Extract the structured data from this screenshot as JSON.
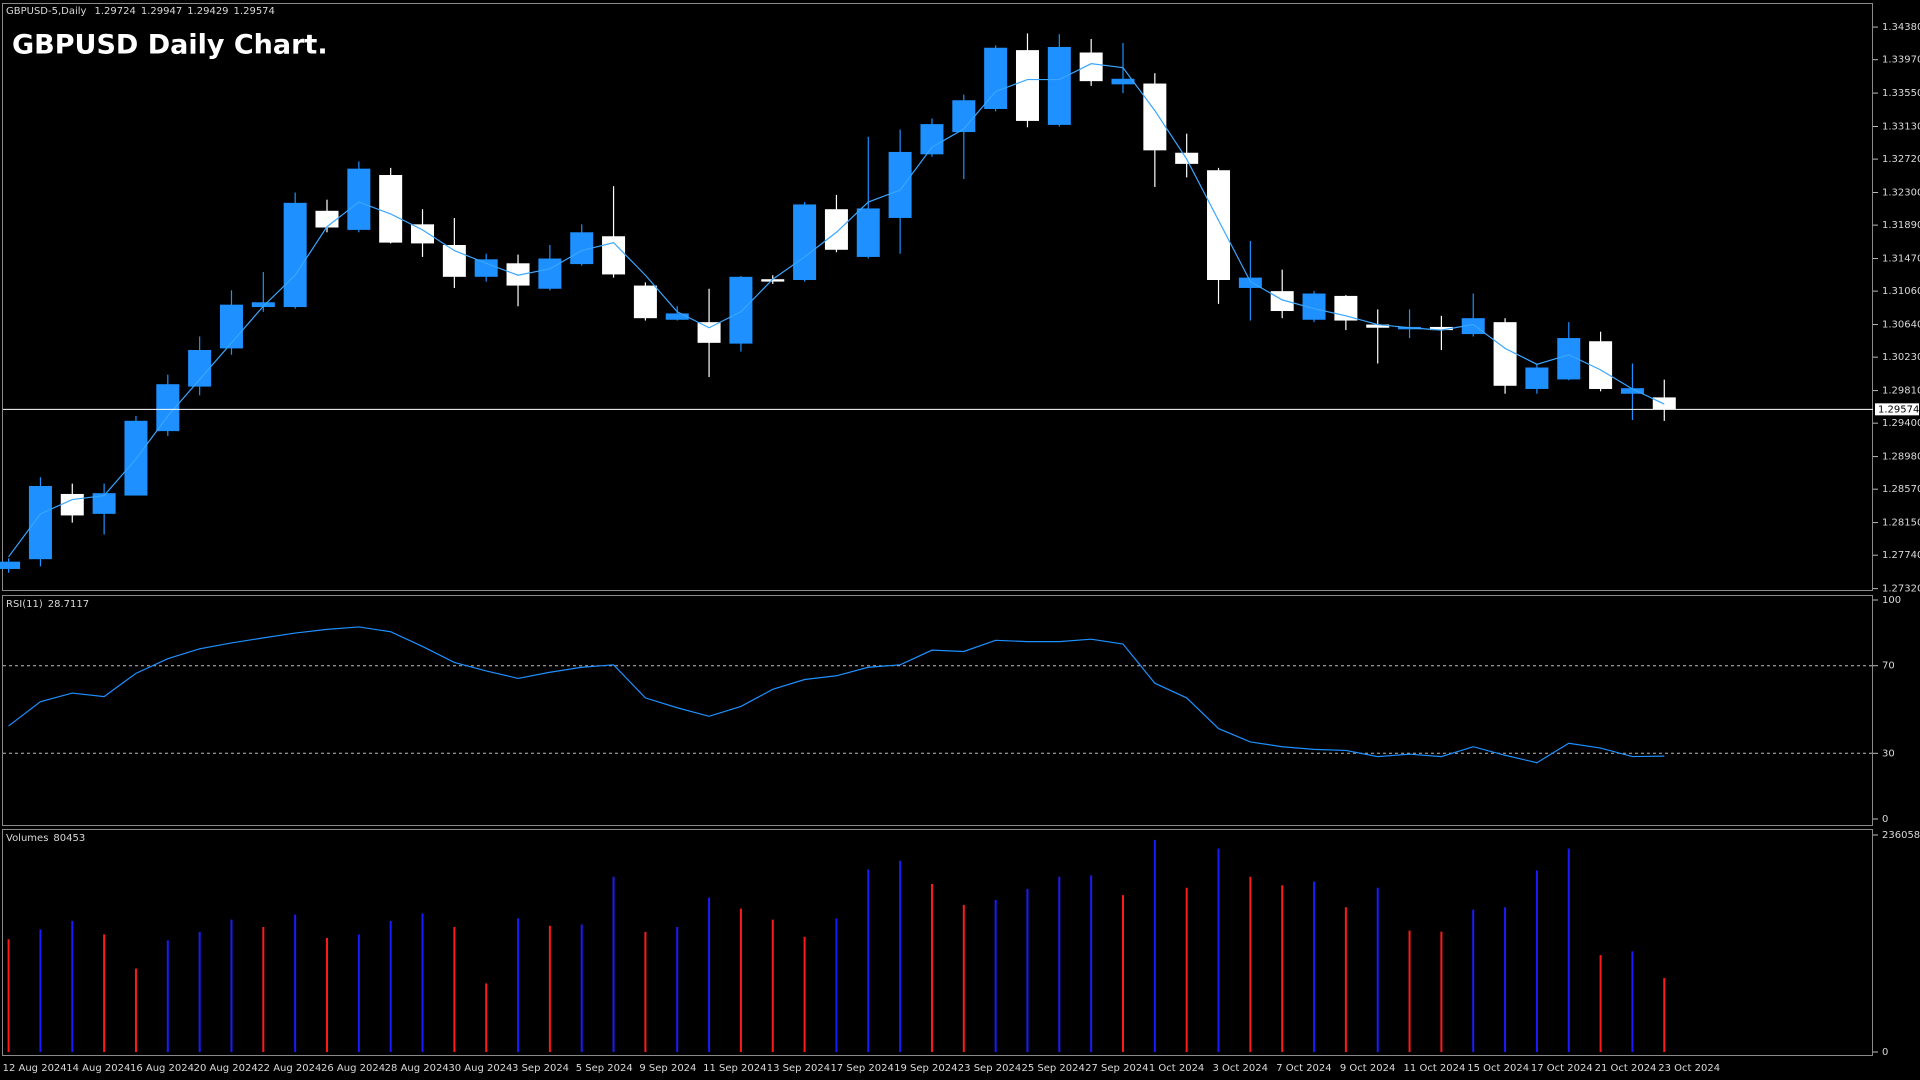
{
  "chart_data": [
    {
      "type": "candlestick",
      "symbol": "GBPUSD-5,Daily",
      "title": "GBPUSD Daily Chart.",
      "categories": [
        "12 Aug 2024",
        null,
        "14 Aug 2024",
        null,
        "16 Aug 2024",
        null,
        "20 Aug 2024",
        null,
        "22 Aug 2024",
        null,
        "26 Aug 2024",
        null,
        "28 Aug 2024",
        null,
        "30 Aug 2024",
        null,
        "3 Sep 2024",
        null,
        "5 Sep 2024",
        null,
        "9 Sep 2024",
        null,
        "11 Sep 2024",
        null,
        "13 Sep 2024",
        null,
        "17 Sep 2024",
        null,
        "19 Sep 2024",
        null,
        "23 Sep 2024",
        null,
        "25 Sep 2024",
        null,
        "27 Sep 2024",
        null,
        "1 Oct 2024",
        null,
        "3 Oct 2024",
        null,
        "7 Oct 2024",
        null,
        "9 Oct 2024",
        null,
        "11 Oct 2024",
        null,
        "15 Oct 2024",
        null,
        "17 Oct 2024",
        null,
        "21 Oct 2024",
        null,
        "23 Oct 2024"
      ],
      "candles": {
        "open": [
          1.27567,
          1.2769,
          1.2851,
          1.2826,
          1.2849,
          1.293,
          1.2986,
          1.3034,
          1.3086,
          1.3086,
          1.3207,
          1.3183,
          1.3252,
          1.319,
          1.3164,
          1.3124,
          1.3141,
          1.3109,
          1.314,
          1.3175,
          1.3113,
          1.307,
          1.3067,
          1.304,
          1.3121,
          1.312,
          1.3209,
          1.3149,
          1.3198,
          1.3278,
          1.3306,
          1.3335,
          1.3409,
          1.3315,
          1.3406,
          1.3366,
          1.3367,
          1.328,
          1.3258,
          1.311,
          1.3106,
          1.307,
          1.31,
          1.3064,
          1.3058,
          1.3061,
          1.3052,
          1.3067,
          1.2983,
          1.2995,
          1.3043,
          1.2977,
          1.29724
        ],
        "high": [
          1.277,
          1.2872,
          1.2864,
          1.2864,
          1.2949,
          1.3001,
          1.3049,
          1.3107,
          1.313,
          1.323,
          1.3221,
          1.3269,
          1.3261,
          1.3209,
          1.3198,
          1.3153,
          1.3152,
          1.3164,
          1.319,
          1.3238,
          1.3117,
          1.3087,
          1.3109,
          1.3125,
          1.3126,
          1.3218,
          1.3227,
          1.33,
          1.3309,
          1.3323,
          1.3353,
          1.3415,
          1.343,
          1.3429,
          1.3423,
          1.3418,
          1.338,
          1.3304,
          1.3261,
          1.3169,
          1.3133,
          1.3106,
          1.3101,
          1.3083,
          1.3083,
          1.3075,
          1.3103,
          1.3072,
          1.3015,
          1.3067,
          1.3055,
          1.3015,
          1.29947
        ],
        "low": [
          1.2752,
          1.276,
          1.2815,
          1.28,
          1.2849,
          1.2924,
          1.2975,
          1.3026,
          1.308,
          1.3084,
          1.318,
          1.318,
          1.3166,
          1.3149,
          1.311,
          1.3118,
          1.3087,
          1.3107,
          1.3138,
          1.3123,
          1.3069,
          1.3069,
          1.2998,
          1.303,
          1.3115,
          1.3118,
          1.3155,
          1.3147,
          1.3153,
          1.3275,
          1.3247,
          1.3332,
          1.3312,
          1.3313,
          1.3364,
          1.3355,
          1.3237,
          1.3249,
          1.309,
          1.3069,
          1.3072,
          1.3067,
          1.3057,
          1.3015,
          1.3047,
          1.3032,
          1.3049,
          1.2977,
          1.2977,
          1.2994,
          1.298,
          1.2944,
          1.29429
        ],
        "close": [
          1.27659,
          1.2861,
          1.2824,
          1.2852,
          1.2943,
          1.2989,
          1.3032,
          1.3089,
          1.3092,
          1.3217,
          1.3186,
          1.326,
          1.3167,
          1.3166,
          1.3124,
          1.3146,
          1.3113,
          1.3147,
          1.318,
          1.3127,
          1.3072,
          1.3078,
          1.3041,
          1.3124,
          1.3118,
          1.3215,
          1.3158,
          1.321,
          1.3281,
          1.3316,
          1.3346,
          1.3412,
          1.332,
          1.3413,
          1.337,
          1.3373,
          1.3283,
          1.3266,
          1.312,
          1.3123,
          1.3081,
          1.3103,
          1.3069,
          1.306,
          1.3061,
          1.3057,
          1.3072,
          1.2987,
          1.301,
          1.3047,
          1.2983,
          1.2984,
          1.29574
        ]
      },
      "up_color": "#1e90ff",
      "down_color": "#ffffff",
      "ma": {
        "color": "#3aa6ff",
        "values": [
          1.2772,
          1.2826,
          1.2844,
          1.2849,
          1.2895,
          1.2949,
          1.2995,
          1.3041,
          1.3087,
          1.3126,
          1.3187,
          1.3218,
          1.3203,
          1.3183,
          1.3157,
          1.3141,
          1.3126,
          1.3134,
          1.3157,
          1.3167,
          1.3126,
          1.308,
          1.306,
          1.308,
          1.3121,
          1.3149,
          1.318,
          1.3218,
          1.3233,
          1.3287,
          1.331,
          1.3357,
          1.3372,
          1.3372,
          1.3392,
          1.3387,
          1.3333,
          1.3272,
          1.3195,
          1.3118,
          1.3095,
          1.3084,
          1.3075,
          1.3064,
          1.306,
          1.3057,
          1.3064,
          1.3034,
          1.3014,
          1.3026,
          1.3007,
          1.2983,
          1.2964
        ]
      },
      "ylim": [
        1.2729,
        1.3467
      ],
      "yticks": [
        {
          "value": 1.3438,
          "label": "1.34380"
        },
        {
          "value": 1.3397,
          "label": "1.33970"
        },
        {
          "value": 1.3355,
          "label": "1.33550"
        },
        {
          "value": 1.3313,
          "label": "1.33130"
        },
        {
          "value": 1.3272,
          "label": "1.32720"
        },
        {
          "value": 1.323,
          "label": "1.32300"
        },
        {
          "value": 1.3189,
          "label": "1.31890"
        },
        {
          "value": 1.3147,
          "label": "1.31470"
        },
        {
          "value": 1.3106,
          "label": "1.31060"
        },
        {
          "value": 1.3064,
          "label": "1.30640"
        },
        {
          "value": 1.3023,
          "label": "1.30230"
        },
        {
          "value": 1.2981,
          "label": "1.29810"
        },
        {
          "value": 1.294,
          "label": "1.29400"
        },
        {
          "value": 1.2898,
          "label": "1.28980"
        },
        {
          "value": 1.2857,
          "label": "1.28570"
        },
        {
          "value": 1.2815,
          "label": "1.28150"
        },
        {
          "value": 1.2774,
          "label": "1.27740"
        },
        {
          "value": 1.2732,
          "label": "1.27320"
        }
      ]
    },
    {
      "type": "line",
      "name": "RSI(11)",
      "color": "#1e90ff",
      "values": [
        42.5,
        53.6,
        57.5,
        55.9,
        66.5,
        73.2,
        77.7,
        80.4,
        82.7,
        84.9,
        86.6,
        87.7,
        85.5,
        78.8,
        71.5,
        67.6,
        64.2,
        67.0,
        69.3,
        70.4,
        55.3,
        50.8,
        46.9,
        51.4,
        59.2,
        63.7,
        65.4,
        69.3,
        70.4,
        77.1,
        76.5,
        81.6,
        81.0,
        81.0,
        82.1,
        79.9,
        62.0,
        55.3,
        41.3,
        35.2,
        33.0,
        31.8,
        31.3,
        28.5,
        29.6,
        28.5,
        33.0,
        29.1,
        25.7,
        34.6,
        32.4,
        28.5,
        28.7117
      ],
      "levels": [
        70,
        30
      ],
      "ylim": [
        0,
        100
      ],
      "yticks": [
        100,
        70,
        30,
        0
      ]
    },
    {
      "type": "bar",
      "name": "Volumes",
      "up_color": "#1a1aff",
      "down_color": "#ff1a1a",
      "values": [
        122700,
        133400,
        142700,
        128000,
        90700,
        121400,
        130700,
        144000,
        136000,
        149400,
        124000,
        128000,
        142700,
        150700,
        136000,
        74700,
        145400,
        137400,
        138700,
        190700,
        130700,
        136000,
        168000,
        156000,
        144000,
        125400,
        145400,
        198700,
        208100,
        182700,
        160000,
        165400,
        177400,
        190700,
        192100,
        170700,
        230700,
        178700,
        221400,
        190700,
        181400,
        185400,
        157400,
        178700,
        132000,
        131000,
        154700,
        157400,
        197400,
        221400,
        105400,
        109400,
        80453
      ],
      "ylim": [
        0,
        236058
      ],
      "yticks": [
        236058,
        0
      ]
    }
  ]
}
